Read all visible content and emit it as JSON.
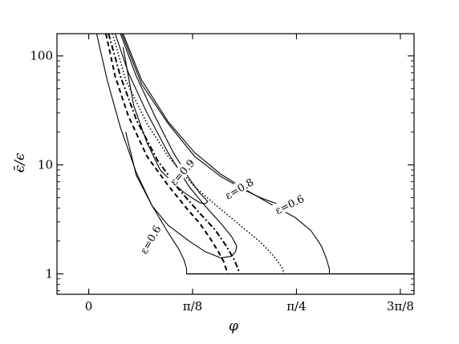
{
  "chart_data": {
    "type": "line",
    "xlabel": "φ",
    "ylabel": "ϵ̄/ϵ",
    "yscale": "log",
    "xlim": [
      -0.12,
      1.23
    ],
    "ylim": [
      0.65,
      160
    ],
    "grid": false,
    "legend": "none",
    "xticks": [
      {
        "value": 0,
        "label": "0"
      },
      {
        "value": 0.3927,
        "label": "π/8"
      },
      {
        "value": 0.7854,
        "label": "π/4"
      },
      {
        "value": 1.1781,
        "label": "3π/8"
      }
    ],
    "yticks": [
      {
        "value": 1,
        "label": "1"
      },
      {
        "value": 10,
        "label": "10"
      },
      {
        "value": 100,
        "label": "100"
      }
    ],
    "baseline": {
      "x": [
        0.37,
        1.23
      ],
      "y": [
        1,
        1
      ]
    },
    "series": [
      {
        "style": "solid",
        "x": [
          0.03,
          0.07,
          0.12,
          0.18,
          0.24,
          0.3,
          0.34,
          0.36,
          0.37,
          0.37
        ],
        "y": [
          160,
          60,
          22,
          8.5,
          4.2,
          2.4,
          1.7,
          1.35,
          1.12,
          1.0
        ]
      },
      {
        "style": "solid",
        "x": [
          0.1,
          0.15,
          0.22,
          0.3,
          0.38,
          0.44,
          0.5,
          0.54,
          0.56,
          0.555,
          0.54,
          0.5,
          0.44,
          0.38,
          0.3,
          0.24,
          0.18,
          0.14
        ],
        "y": [
          160,
          70,
          30,
          13,
          6.3,
          4.2,
          2.9,
          2.2,
          1.8,
          1.6,
          1.45,
          1.4,
          1.6,
          2.0,
          2.8,
          4.2,
          8,
          20
        ]
      },
      {
        "style": "solid",
        "x": [
          0.12,
          0.18,
          0.25,
          0.32,
          0.38,
          0.42,
          0.44,
          0.45,
          0.44,
          0.42,
          0.39,
          0.36,
          0.32,
          0.27,
          0.22,
          0.17,
          0.13
        ],
        "y": [
          160,
          65,
          28,
          13,
          7.5,
          5.5,
          4.9,
          4.6,
          4.4,
          4.5,
          5.0,
          5.6,
          6.8,
          9,
          16,
          35,
          120
        ]
      },
      {
        "style": "solid",
        "x": [
          0.13,
          0.2,
          0.3,
          0.4,
          0.5,
          0.6,
          0.7,
          0.78,
          0.84,
          0.88,
          0.9,
          0.91,
          0.91
        ],
        "y": [
          160,
          60,
          25,
          13,
          8.2,
          5.8,
          4.2,
          3.3,
          2.5,
          1.8,
          1.35,
          1.1,
          1.0
        ]
      },
      {
        "style": "solid",
        "x": [
          0.125,
          0.2,
          0.3,
          0.4,
          0.5,
          0.6,
          0.65,
          0.7,
          0.74
        ],
        "y": [
          160,
          55,
          24,
          12,
          7.8,
          5.7,
          5.0,
          4.5,
          4.2
        ]
      },
      {
        "style": "dash",
        "x": [
          0.065,
          0.1,
          0.15,
          0.22,
          0.3,
          0.37,
          0.42,
          0.46,
          0.49,
          0.51,
          0.52,
          0.525
        ],
        "y": [
          160,
          65,
          28,
          12,
          6.5,
          4.0,
          2.9,
          2.1,
          1.6,
          1.3,
          1.1,
          1.0
        ]
      },
      {
        "style": "dashdot",
        "x": [
          0.075,
          0.12,
          0.18,
          0.26,
          0.34,
          0.42,
          0.48,
          0.52,
          0.55,
          0.565,
          0.57
        ],
        "y": [
          160,
          65,
          26,
          11,
          6.0,
          3.6,
          2.5,
          1.8,
          1.35,
          1.1,
          1.0
        ]
      },
      {
        "style": "dot",
        "x": [
          0.09,
          0.14,
          0.22,
          0.3,
          0.4,
          0.5,
          0.58,
          0.65,
          0.7,
          0.73,
          0.74
        ],
        "y": [
          160,
          60,
          24,
          12,
          6.3,
          3.9,
          2.7,
          1.95,
          1.45,
          1.15,
          1.0
        ]
      }
    ],
    "annotations": [
      {
        "text": "ε=0.6",
        "x": 0.235,
        "y": 2.05,
        "rotate": 60
      },
      {
        "text": "ε=0.9",
        "x": 0.355,
        "y": 8.5,
        "rotate": 48
      },
      {
        "text": "ε=0.8",
        "x": 0.57,
        "y": 6.0,
        "rotate": 30
      },
      {
        "text": "ε=0.6",
        "x": 0.76,
        "y": 4.3,
        "rotate": 26
      }
    ]
  }
}
